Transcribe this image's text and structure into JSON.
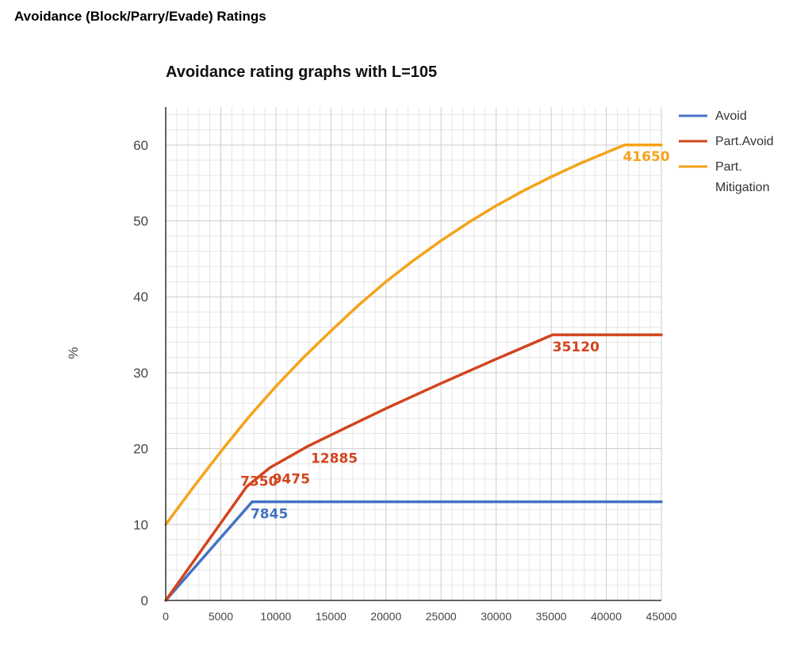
{
  "page": {
    "heading": "Avoidance (Block/Parry/Evade) Ratings"
  },
  "colors": {
    "avoid": "#4472c4",
    "part_avoid": "#d2451e",
    "part_mitigation": "#f4a31a",
    "grid_major": "#cccccc",
    "grid_minor": "#e6e6e6",
    "axis": "#333333"
  },
  "chart_data": {
    "type": "line",
    "title": "Avoidance rating graphs with L=105",
    "xlabel": "",
    "ylabel": "%",
    "xlim": [
      0,
      45000
    ],
    "ylim": [
      0,
      65
    ],
    "x_ticks": [
      "0",
      "5000",
      "10000",
      "15000",
      "20000",
      "25000",
      "30000",
      "35000",
      "40000",
      "45000"
    ],
    "y_ticks": [
      "0",
      "10",
      "20",
      "30",
      "40",
      "50",
      "60"
    ],
    "grid": true,
    "legend": "top-right",
    "series": [
      {
        "name": "Avoid",
        "color_key": "avoid",
        "x": [
          0,
          7845,
          45000
        ],
        "y": [
          0,
          13,
          13
        ]
      },
      {
        "name": "Part.Avoid",
        "color_key": "part_avoid",
        "x": [
          0,
          7350,
          9475,
          12885,
          16000,
          20000,
          25000,
          30000,
          35120,
          45000
        ],
        "y": [
          0,
          15,
          17.5,
          20.3,
          22.5,
          25.3,
          28.6,
          31.8,
          35,
          35
        ]
      },
      {
        "name": "Part.\nMitigation",
        "color_key": "part_mitigation",
        "x": [
          0,
          2500,
          5000,
          7500,
          10000,
          12500,
          15000,
          17500,
          20000,
          22500,
          25000,
          27500,
          30000,
          32500,
          35000,
          37500,
          41650,
          45000
        ],
        "y": [
          10,
          14.9,
          19.6,
          24.1,
          28.2,
          32.0,
          35.5,
          38.9,
          42.0,
          44.8,
          47.4,
          49.8,
          52.0,
          54.0,
          55.8,
          57.5,
          60,
          60
        ]
      }
    ],
    "annotations": [
      {
        "text": "41650",
        "color_key": "part_mitigation",
        "x": 41650,
        "y": 60
      },
      {
        "text": "35120",
        "color_key": "part_avoid",
        "x": 35120,
        "y": 35
      },
      {
        "text": "12885",
        "color_key": "part_avoid",
        "x": 12885,
        "y": 20.3
      },
      {
        "text": "9475",
        "color_key": "part_avoid",
        "x": 9475,
        "y": 17.5
      },
      {
        "text": "7350",
        "color_key": "part_avoid",
        "x": 7350,
        "y": 15
      },
      {
        "text": "7845",
        "color_key": "avoid",
        "x": 7845,
        "y": 13
      }
    ]
  }
}
